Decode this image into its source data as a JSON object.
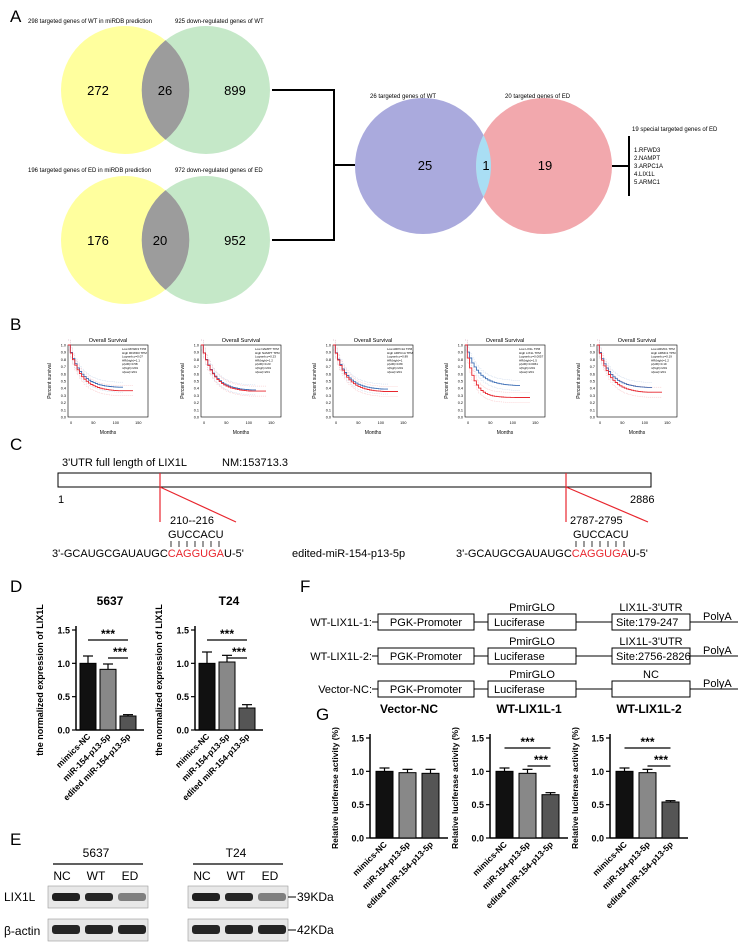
{
  "panels": {
    "A": "A",
    "B": "B",
    "C": "C",
    "D": "D",
    "E": "E",
    "F": "F",
    "G": "G"
  },
  "venn_top": {
    "label_left": "298 targeted genes of WT in miRDB prediction",
    "label_right": "925 down-regulated genes of WT",
    "left": "272",
    "overlap": "26",
    "right": "899"
  },
  "venn_bottom": {
    "label_left": "196 targeted genes of ED in miRDB prediction",
    "label_right": "972 down-regulated genes of ED",
    "left": "176",
    "overlap": "20",
    "right": "952"
  },
  "venn_right": {
    "label_left": "26 targeted genes of WT",
    "label_right": "20 targeted genes of ED",
    "left": "25",
    "overlap": "1",
    "right": "19"
  },
  "special": {
    "title": "19 special targeted genes of ED",
    "genes": [
      "1.RFWD3",
      "2.NAMPT",
      "3.ARPC1A",
      "4.LIX1L",
      "5.ARMC1"
    ]
  },
  "survival": [
    {
      "title": "Overall Survival",
      "gene": "RFWD3",
      "legend": [
        "Low RFWD3 TPM",
        "High RFWD3 TPM",
        "Logrank p=0.07",
        "HR(high)=1.1",
        "p(HR)=0.58",
        "n(high)=201",
        "n(low)=201"
      ]
    },
    {
      "title": "Overall Survival",
      "gene": "NAMPT",
      "legend": [
        "Low NAMPT TPM",
        "High NAMPT TPM",
        "Logrank p=0.23",
        "HR(high)=1.2",
        "p(HR)=0.23",
        "n(high)=201",
        "n(low)=201"
      ]
    },
    {
      "title": "Overall Survival",
      "gene": "ARPC1A",
      "legend": [
        "Low ARPC1A TPM",
        "High ARPC1A TPM",
        "Logrank p=0.89",
        "HR(high)=1",
        "p(HR)=0.89",
        "n(high)=201",
        "n(low)=201"
      ]
    },
    {
      "title": "Overall Survival",
      "gene": "LIX1L",
      "legend": [
        "Low LIX1L TPM",
        "High LIX1L TPM",
        "Logrank p=0.0057",
        "HR(high)=1.5",
        "p(HR)=0.0061",
        "n(high)=201",
        "n(low)=201"
      ]
    },
    {
      "title": "Overall Survival",
      "gene": "ARMC1",
      "legend": [
        "Low ARMC1 TPM",
        "High ARMC1 TPM",
        "Logrank p=0.19",
        "HR(high)=1.2",
        "p(HR)=0.19",
        "n(high)=201",
        "n(low)=201"
      ]
    }
  ],
  "survival_axes": {
    "ylabel": "Percent survival",
    "xlabel": "Months",
    "yticks": [
      "0.0",
      "0.1",
      "0.2",
      "0.3",
      "0.4",
      "0.5",
      "0.6",
      "0.7",
      "0.8",
      "0.9",
      "1.0"
    ],
    "xticks": [
      "0",
      "50",
      "100",
      "150"
    ]
  },
  "utr": {
    "title": "3'UTR full length of LIX1L",
    "nm": "NM:153713.3",
    "start": "1",
    "end": "2886",
    "site1": "210--216",
    "site2": "2787-2795",
    "target": "GUCCACU",
    "mirna_black": "3'-GCAUGCGAUAUGC",
    "mirna_red": "CAGGUGA",
    "mirna_tail": "U-5'",
    "mirna_name": "edited-miR-154-p13-5p"
  },
  "colors": {
    "yellow": "#ffff9e",
    "green": "#c5e8c8",
    "grey": "#9c9c9c",
    "purple": "#aaaadd",
    "pink": "#f2a8ad",
    "lightblue": "#a9def4",
    "red": "#e8262e",
    "blue": "#3d6fb6"
  },
  "chart_data": [
    {
      "type": "bar",
      "title": "5637",
      "ylabel": "the normalized expression of LIX1L",
      "categories": [
        "mimics-NC",
        "miR-154-p13-5p",
        "edited miR-154-p13-5p"
      ],
      "values": [
        1.0,
        0.91,
        0.21
      ],
      "errors": [
        0.11,
        0.08,
        0.02
      ],
      "ylim": [
        0,
        1.5
      ],
      "yticks": [
        "0.0",
        "0.5",
        "1.0",
        "1.5"
      ],
      "significance": [
        "***",
        "***"
      ]
    },
    {
      "type": "bar",
      "title": "T24",
      "ylabel": "the normalized expression of LIX1L",
      "categories": [
        "mimics-NC",
        "miR-154-p13-5p",
        "edited miR-154-p13-5p"
      ],
      "values": [
        1.0,
        1.02,
        0.33
      ],
      "errors": [
        0.17,
        0.1,
        0.05
      ],
      "ylim": [
        0,
        1.5
      ],
      "yticks": [
        "0.0",
        "0.5",
        "1.0",
        "1.5"
      ],
      "significance": [
        "***",
        "***"
      ]
    },
    {
      "type": "bar",
      "title": "Vector-NC",
      "ylabel": "Relative luciferase activity (%)",
      "categories": [
        "mimics-NC",
        "miR-154-p13-5p",
        "edited miR-154-p13-5p"
      ],
      "values": [
        1.0,
        0.98,
        0.97
      ],
      "errors": [
        0.05,
        0.05,
        0.06
      ],
      "ylim": [
        0,
        1.5
      ],
      "yticks": [
        "0.0",
        "0.5",
        "1.0",
        "1.5"
      ],
      "significance": []
    },
    {
      "type": "bar",
      "title": "WT-LIX1L-1",
      "ylabel": "Relative luciferase activity (%)",
      "categories": [
        "mimics-NC",
        "miR-154-p13-5p",
        "edited miR-154-p13-5p"
      ],
      "values": [
        1.0,
        0.97,
        0.65
      ],
      "errors": [
        0.05,
        0.06,
        0.03
      ],
      "ylim": [
        0,
        1.5
      ],
      "yticks": [
        "0.0",
        "0.5",
        "1.0",
        "1.5"
      ],
      "significance": [
        "***",
        "***"
      ]
    },
    {
      "type": "bar",
      "title": "WT-LIX1L-2",
      "ylabel": "Relative luciferase activity (%)",
      "categories": [
        "mimics-NC",
        "miR-154-p13-5p",
        "edited miR-154-p13-5p"
      ],
      "values": [
        1.0,
        0.98,
        0.54
      ],
      "errors": [
        0.05,
        0.05,
        0.02
      ],
      "ylim": [
        0,
        1.5
      ],
      "yticks": [
        "0.0",
        "0.5",
        "1.0",
        "1.5"
      ],
      "significance": [
        "***",
        "***"
      ]
    }
  ],
  "western": {
    "cell1": "5637",
    "cell2": "T24",
    "lanes": [
      "NC",
      "WT",
      "ED"
    ],
    "row1": "LIX1L",
    "row2": "β-actin",
    "kda1": "39KDa",
    "kda2": "42KDa",
    "lix1l_intensity": [
      1.0,
      0.95,
      0.35
    ],
    "actin_intensity": [
      1.0,
      1.0,
      1.0
    ]
  },
  "constructs": [
    {
      "name": "WT-LIX1L-1:",
      "promoter": "PGK-Promoter",
      "vector": "PmirGLO",
      "luciferase": "Luciferase",
      "utr_top": "LIX1L-3'UTR",
      "utr_site": "Site:179-247",
      "polyA": "PolyA"
    },
    {
      "name": "WT-LIX1L-2:",
      "promoter": "PGK-Promoter",
      "vector": "PmirGLO",
      "luciferase": "Luciferase",
      "utr_top": "LIX1L-3'UTR",
      "utr_site": "Site:2756-2826",
      "polyA": "PolyA"
    },
    {
      "name": "Vector-NC:",
      "promoter": "PGK-Promoter",
      "vector": "PmirGLO",
      "luciferase": "Luciferase",
      "utr_top": "NC",
      "utr_site": "",
      "polyA": "PolyA"
    }
  ]
}
